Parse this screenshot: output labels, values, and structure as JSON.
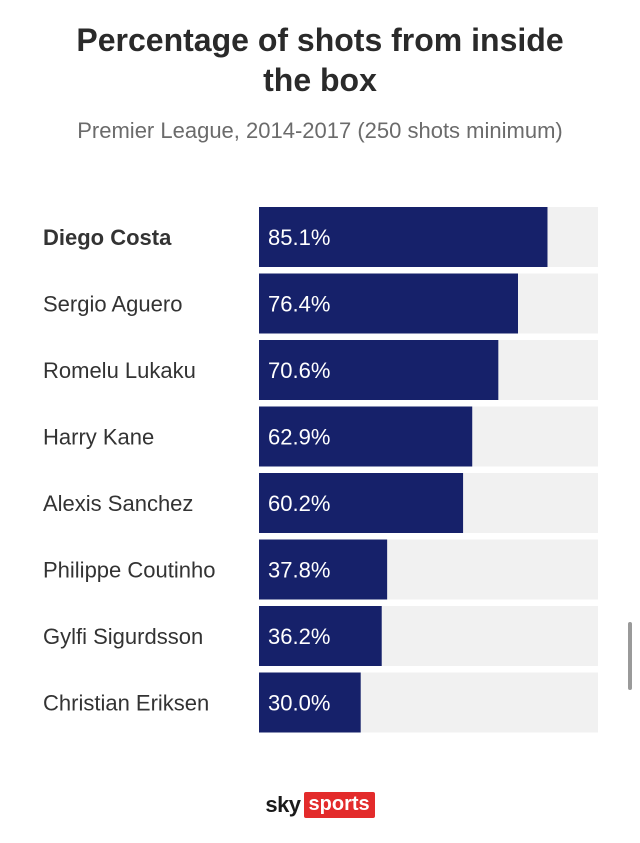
{
  "title_line1": "Percentage of shots from inside",
  "title_line2": "the box",
  "subtitle": "Premier League, 2014-2017 (250 shots minimum)",
  "logo": {
    "sky": "sky",
    "sports": "sports"
  },
  "colors": {
    "bar": "#16216a",
    "track": "#f1f1f1",
    "label": "#333333",
    "value_text": "#ffffff",
    "brand_red": "#e32b2b"
  },
  "chart_data": {
    "type": "bar",
    "orientation": "horizontal",
    "title": "Percentage of shots from inside the box",
    "subtitle": "Premier League, 2014-2017 (250 shots minimum)",
    "categories": [
      "Diego Costa",
      "Sergio Aguero",
      "Romelu Lukaku",
      "Harry Kane",
      "Alexis Sanchez",
      "Philippe Coutinho",
      "Gylfi Sigurdsson",
      "Christian Eriksen"
    ],
    "values": [
      85.1,
      76.4,
      70.6,
      62.9,
      60.2,
      37.8,
      36.2,
      30.0
    ],
    "value_labels": [
      "85.1%",
      "76.4%",
      "70.6%",
      "62.9%",
      "60.2%",
      "37.8%",
      "36.2%",
      "30.0%"
    ],
    "highlighted_category": "Diego Costa",
    "xlim": [
      0,
      100
    ],
    "xlabel": "",
    "ylabel": "",
    "grid": false,
    "legend": "none"
  }
}
